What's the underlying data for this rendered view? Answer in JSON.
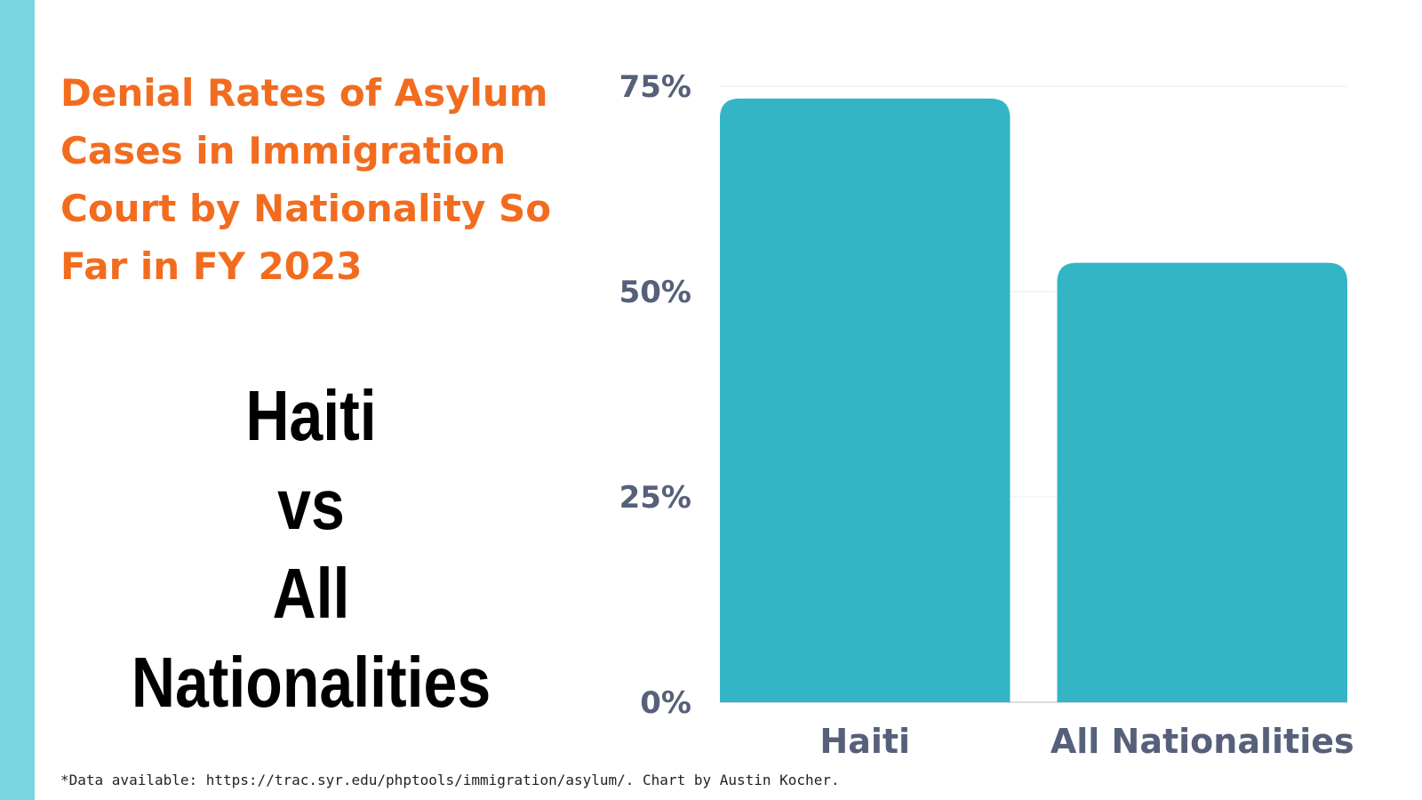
{
  "title": "Denial Rates of Asylum Cases in Immigration Court by Nationality So Far in FY 2023",
  "comparison": {
    "first": "Haiti",
    "connector": "vs",
    "second": "All Nationalities"
  },
  "footnote": "*Data available: https://trac.syr.edu/phptools/immigration/asylum/. Chart by Austin Kocher.",
  "colors": {
    "bar": "#33b5c5",
    "title": "#f26c1f",
    "accent": "#79d5df",
    "labels": "#56607a"
  },
  "chart_data": {
    "type": "bar",
    "title": "Denial Rates of Asylum Cases in Immigration Court by Nationality So Far in FY 2023",
    "categories": [
      "Haiti",
      "All Nationalities"
    ],
    "values": [
      73.5,
      53.5
    ],
    "ylim": [
      0,
      75
    ],
    "yticks": [
      0,
      25,
      50,
      75
    ],
    "ytick_labels": [
      "0%",
      "25%",
      "50%",
      "75%"
    ],
    "grid": true,
    "legend": "none"
  }
}
